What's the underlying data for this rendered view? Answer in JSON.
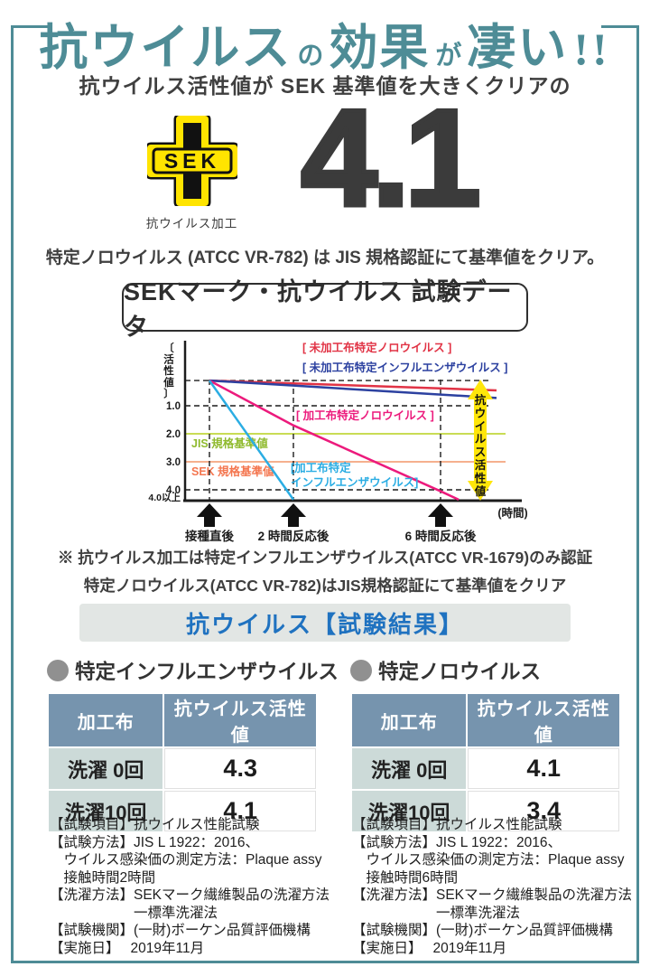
{
  "frame_color": "#4e8c96",
  "header": {
    "title_parts": [
      {
        "text": "抗ウイルス"
      },
      {
        "text": "の"
      },
      {
        "text": "効果"
      },
      {
        "text": "が"
      },
      {
        "text": "凄い"
      },
      {
        "text": "!!"
      }
    ],
    "subtitle": "抗ウイルス活性値が SEK 基準値を大きくクリアの"
  },
  "sek_mark": {
    "label": "SEK",
    "caption": "抗ウイルス加工"
  },
  "big_value": "4.1",
  "certification_line": "特定ノロウイルス (ATCC VR-782) は JIS 規格認証にて基準値をクリア。",
  "chart_title": "SEKマーク・抗ウイルス 試験データ",
  "chart_data": {
    "type": "line",
    "title": "SEKマーク・抗ウイルス 試験データ",
    "ylabel": "〔活性値〕",
    "xlabel": "(時間)",
    "y_ticks": [
      {
        "v": 1.0,
        "label": "1.0"
      },
      {
        "v": 2.0,
        "label": "2.0"
      },
      {
        "v": 3.0,
        "label": "3.0"
      },
      {
        "v": 4.0,
        "label": "4.0"
      },
      {
        "v": 4.35,
        "label": "4.0以上"
      }
    ],
    "y_axis_inverted_note": "activity value increases downward, 0 at top to 4.0以上 at bottom",
    "dashed_gridlines": [
      0.1,
      1.0,
      4.0
    ],
    "x_points": [
      {
        "t": 0,
        "label": "接種直後"
      },
      {
        "t": 2,
        "label": "2 時間反応後"
      },
      {
        "t": 6,
        "label": "6 時間反応後"
      }
    ],
    "reference_lines": [
      {
        "label": "JIS 規格基準値",
        "value": 2.0,
        "text_color": "#8fba2e",
        "line_color": "#c9dc55"
      },
      {
        "label": "SEK 規格基準値",
        "value": 3.0,
        "text_color": "#f4764f",
        "line_color": "#f6b08e"
      }
    ],
    "series": [
      {
        "name": "未加工布特定ノロウイルス",
        "legend": "[ 未加工布特定ノロウイルス ]",
        "color": "#e13345",
        "points": [
          [
            0,
            0.1
          ],
          [
            2,
            0.2
          ],
          [
            6,
            0.38
          ],
          [
            7.7,
            0.45
          ]
        ]
      },
      {
        "name": "未加工布特定インフルエンザウイルス",
        "legend": "[ 未加工布特定インフルエンザウイルス ]",
        "color": "#2c41a0",
        "points": [
          [
            0,
            0.1
          ],
          [
            2,
            0.28
          ],
          [
            6,
            0.6
          ],
          [
            7.7,
            0.72
          ]
        ]
      },
      {
        "name": "加工布特定ノロウイルス",
        "legend": "[ 加工布特定ノロウイルス ]",
        "color": "#ec1a7c",
        "points": [
          [
            0,
            0.1
          ],
          [
            2,
            1.7
          ],
          [
            6,
            4.05
          ],
          [
            6.55,
            4.35
          ]
        ]
      },
      {
        "name": "加工布特定インフルエンザウイルス",
        "legend": "[加工布特定\nインフルエンザウイルス]",
        "color": "#2bade3",
        "points": [
          [
            0,
            0.1
          ],
          [
            2,
            4.35
          ]
        ]
      }
    ],
    "arrow_label": "抗ウイルス活性値",
    "arrow_color": "#ffe60a"
  },
  "notes": [
    "※ 抗ウイルス加工は特定インフルエンザウイルス(ATCC VR-1679)のみ認証",
    "特定ノロウイルス(ATCC VR-782)はJIS規格認証にて基準値をクリア"
  ],
  "results_banner": "抗ウイルス【試験結果】",
  "tables": [
    {
      "heading": "特定インフルエンザウイルス",
      "columns": [
        "加工布",
        "抗ウイルス活性値"
      ],
      "rows": [
        [
          "洗濯 0回",
          "4.3"
        ],
        [
          "洗濯10回",
          "4.1"
        ]
      ]
    },
    {
      "heading": "特定ノロウイルス",
      "columns": [
        "加工布",
        "抗ウイルス活性値"
      ],
      "rows": [
        [
          "洗濯 0回",
          "4.1"
        ],
        [
          "洗濯10回",
          "3.4"
        ]
      ]
    }
  ],
  "details": [
    {
      "lines": [
        "【試験項目】抗ウイルス性能試験",
        "【試験方法】JIS L 1922：2016、",
        "　ウイルス感染価の測定方法：Plaque assy",
        "　接触時間2時間",
        "【洗濯方法】SEKマーク繊維製品の洗濯方法",
        "　　　　　　一標準洗濯法",
        "【試験機関】(一財)ボーケン品質評価機構",
        "【実施日】　 2019年11月"
      ]
    },
    {
      "lines": [
        "【試験項目】抗ウイルス性能試験",
        "【試験方法】JIS L 1922：2016、",
        "　ウイルス感染価の測定方法：Plaque assy",
        "　接触時間6時間",
        "【洗濯方法】SEKマーク繊維製品の洗濯方法",
        "　　　　　　一標準洗濯法",
        "【試験機関】(一財)ボーケン品質評価機構",
        "【実施日】　 2019年11月"
      ]
    }
  ]
}
